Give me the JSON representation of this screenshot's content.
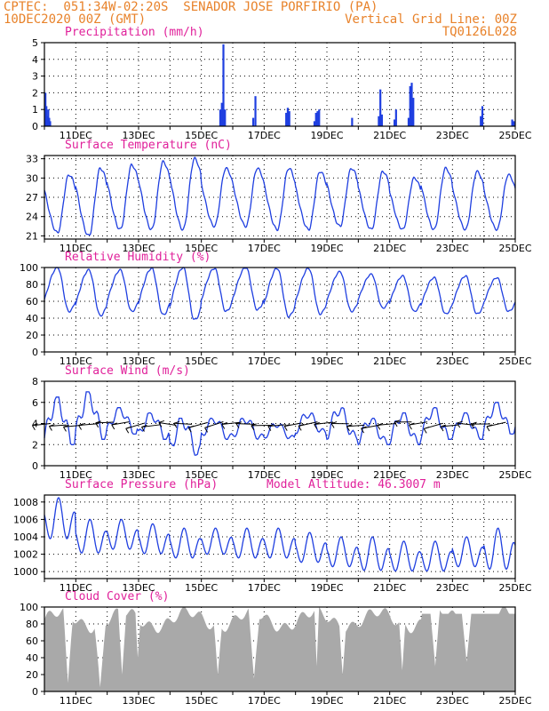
{
  "header": {
    "line1_left": "CPTEC:  051:34W-02:20S  SENADOR JOSE PORFIRIO (PA)",
    "line2_left": "10DEC2020 00Z (GMT)",
    "line2_right": "Vertical Grid Line: 00Z",
    "line3_right": "TQ0126L028"
  },
  "colors": {
    "header": "#e8822a",
    "title": "#e0209a",
    "line": "#1f3fe0",
    "bar": "#1f3fe0",
    "cloud": "#a9a9a9",
    "arrow": "#000000"
  },
  "x_ticks": [
    "11DEC",
    "13DEC",
    "15DEC",
    "17DEC",
    "19DEC",
    "21DEC",
    "23DEC",
    "25DEC"
  ],
  "chart_data": [
    {
      "type": "bar",
      "title": "Precipitation (mm/h)",
      "ylim": [
        0,
        5
      ],
      "yticks": [
        "0",
        "1",
        "2",
        "3",
        "4",
        "5"
      ],
      "xlim_days": [
        0,
        15
      ],
      "points": [
        [
          0.03,
          2.0
        ],
        [
          0.06,
          1.2
        ],
        [
          0.09,
          0.6
        ],
        [
          0.12,
          1.0
        ],
        [
          0.15,
          0.5
        ],
        [
          0.18,
          0.3
        ],
        [
          5.6,
          1.0
        ],
        [
          5.65,
          1.4
        ],
        [
          5.7,
          4.9
        ],
        [
          5.75,
          1.0
        ],
        [
          6.65,
          0.5
        ],
        [
          6.72,
          1.8
        ],
        [
          7.7,
          0.8
        ],
        [
          7.75,
          1.1
        ],
        [
          7.8,
          0.9
        ],
        [
          8.6,
          0.3
        ],
        [
          8.65,
          0.8
        ],
        [
          8.7,
          0.9
        ],
        [
          8.75,
          1.0
        ],
        [
          9.8,
          0.5
        ],
        [
          10.65,
          0.6
        ],
        [
          10.7,
          2.2
        ],
        [
          10.75,
          0.7
        ],
        [
          11.15,
          0.4
        ],
        [
          11.2,
          1.0
        ],
        [
          11.6,
          0.5
        ],
        [
          11.65,
          2.4
        ],
        [
          11.7,
          2.6
        ],
        [
          11.75,
          1.7
        ],
        [
          13.9,
          0.6
        ],
        [
          13.95,
          1.2
        ],
        [
          14.9,
          0.4
        ],
        [
          14.95,
          0.3
        ]
      ]
    },
    {
      "type": "line",
      "title": "Surface Temperature (nC)",
      "ylim": [
        20.5,
        33.5
      ],
      "yticks": [
        "21",
        "24",
        "27",
        "30",
        "33"
      ],
      "tmin": [
        21.5,
        21.0,
        22.0,
        22.0,
        22.0,
        22.5,
        22.5,
        22.0,
        22.0,
        22.5,
        22.0,
        22.0,
        22.0,
        22.0,
        22.0
      ],
      "tmax": [
        30.5,
        31.5,
        32.0,
        32.5,
        33.0,
        31.5,
        31.5,
        31.5,
        31.0,
        31.5,
        31.0,
        30.0,
        31.5,
        31.0,
        30.5
      ]
    },
    {
      "type": "line",
      "title": "Relative Humidity (%)",
      "ylim": [
        0,
        100
      ],
      "yticks": [
        "0",
        "20",
        "40",
        "60",
        "80",
        "100"
      ],
      "hmax": [
        100,
        97,
        97,
        99,
        100,
        99,
        100,
        99,
        99,
        95,
        92,
        90,
        88,
        90,
        88
      ],
      "hmin": [
        48,
        43,
        48,
        44,
        38,
        48,
        50,
        42,
        45,
        48,
        52,
        48,
        45,
        45,
        48
      ]
    },
    {
      "type": "line",
      "title": "Surface Wind (m/s)",
      "ylim": [
        0,
        8
      ],
      "yticks": [
        "0",
        "2",
        "4",
        "6",
        "8"
      ],
      "wmax": [
        6.5,
        7.0,
        5.5,
        5.0,
        4.5,
        4.5,
        4.5,
        4.0,
        5.0,
        5.5,
        4.5,
        5.0,
        5.5,
        5.0,
        6.0
      ],
      "wmin": [
        2.0,
        2.5,
        3.0,
        2.5,
        1.0,
        2.5,
        2.5,
        2.5,
        3.0,
        2.5,
        2.0,
        2.0,
        2.5,
        2.5,
        3.0
      ],
      "arrows": 15
    },
    {
      "type": "line",
      "title": "Surface Pressure (hPa)",
      "subtitle": "Model Altitude: 46.3007 m",
      "ylim": [
        999.2,
        1008.8
      ],
      "yticks": [
        "1000",
        "1002",
        "1004",
        "1006",
        "1008"
      ],
      "pmax": [
        1008.5,
        1006.0,
        1006.0,
        1005.5,
        1005.0,
        1005.0,
        1005.0,
        1005.0,
        1004.5,
        1004.0,
        1004.0,
        1003.5,
        1003.5,
        1004.0,
        1005.0
      ],
      "pmin": [
        1003.0,
        1001.5,
        1002.0,
        1001.5,
        1001.0,
        1001.5,
        1001.0,
        1001.0,
        1000.5,
        1000.0,
        999.5,
        999.5,
        999.5,
        1000.0,
        999.5
      ]
    },
    {
      "type": "area",
      "title": "Cloud Cover (%)",
      "ylim": [
        0,
        100
      ],
      "yticks": [
        "0",
        "20",
        "40",
        "60",
        "80",
        "100"
      ]
    }
  ]
}
